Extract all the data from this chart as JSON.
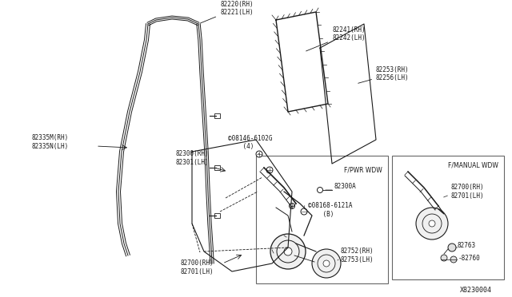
{
  "bg_color": "#ffffff",
  "dark": "#1a1a1a",
  "diagram_id": "X8230004",
  "parts": {
    "82220": "82220(RH)\n82221(LH)",
    "82241": "82241(RH)\n82242(LH)",
    "82253": "82253(RH)\n82256(LH)",
    "82335M": "82335M(RH)\n82335N(LH)",
    "82300": "82300(RH)\n82301(LH)",
    "08146": "©08146-6102G\n    (4)",
    "FPWR": "F/PWR WDW",
    "82300A": "82300A",
    "08168": "©08168-6121A\n    (B)",
    "82752": "82752(RH)\n82753(LH)",
    "82700main": "82700(RH)\n82701(LH)",
    "FMANUAL": "F/MANUAL WDW",
    "82700box": "82700(RH)\n82701(LH)",
    "82763": "82763",
    "82760": "-82760"
  }
}
